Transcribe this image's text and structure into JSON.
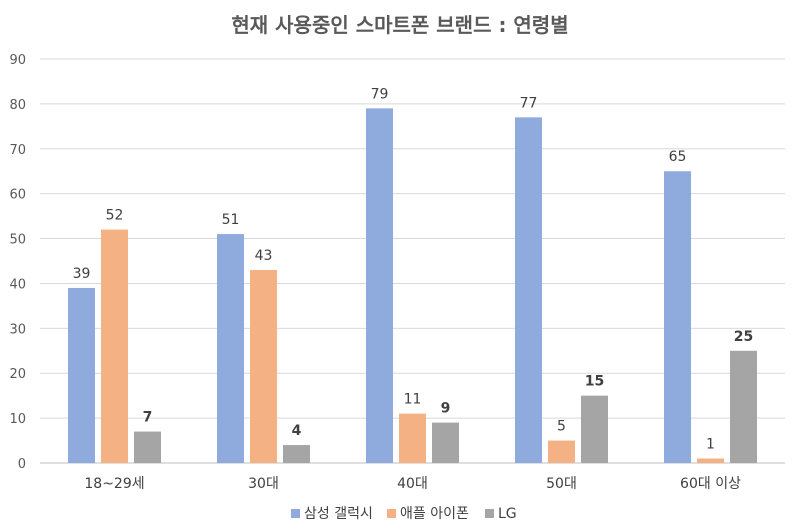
{
  "chart_data": {
    "type": "bar",
    "title": "현재 사용중인 스마트폰 브랜드 : 연령별",
    "categories": [
      "18~29세",
      "30대",
      "40대",
      "50대",
      "60대 이상"
    ],
    "series": [
      {
        "name": "삼성 갤럭시",
        "color": "#8FAADC",
        "values": [
          39,
          51,
          79,
          77,
          65
        ],
        "label_bold": false
      },
      {
        "name": "애플 아이폰",
        "color": "#F4B183",
        "values": [
          52,
          43,
          11,
          5,
          1
        ],
        "label_bold": false
      },
      {
        "name": "LG",
        "color": "#A5A5A5",
        "values": [
          7,
          4,
          9,
          15,
          25
        ],
        "label_bold": true
      }
    ],
    "yticks": [
      "0",
      "10",
      "20",
      "30",
      "40",
      "50",
      "60",
      "70",
      "80",
      "90"
    ],
    "ylim": [
      0,
      90
    ],
    "grid": true,
    "legend_position": "bottom"
  }
}
